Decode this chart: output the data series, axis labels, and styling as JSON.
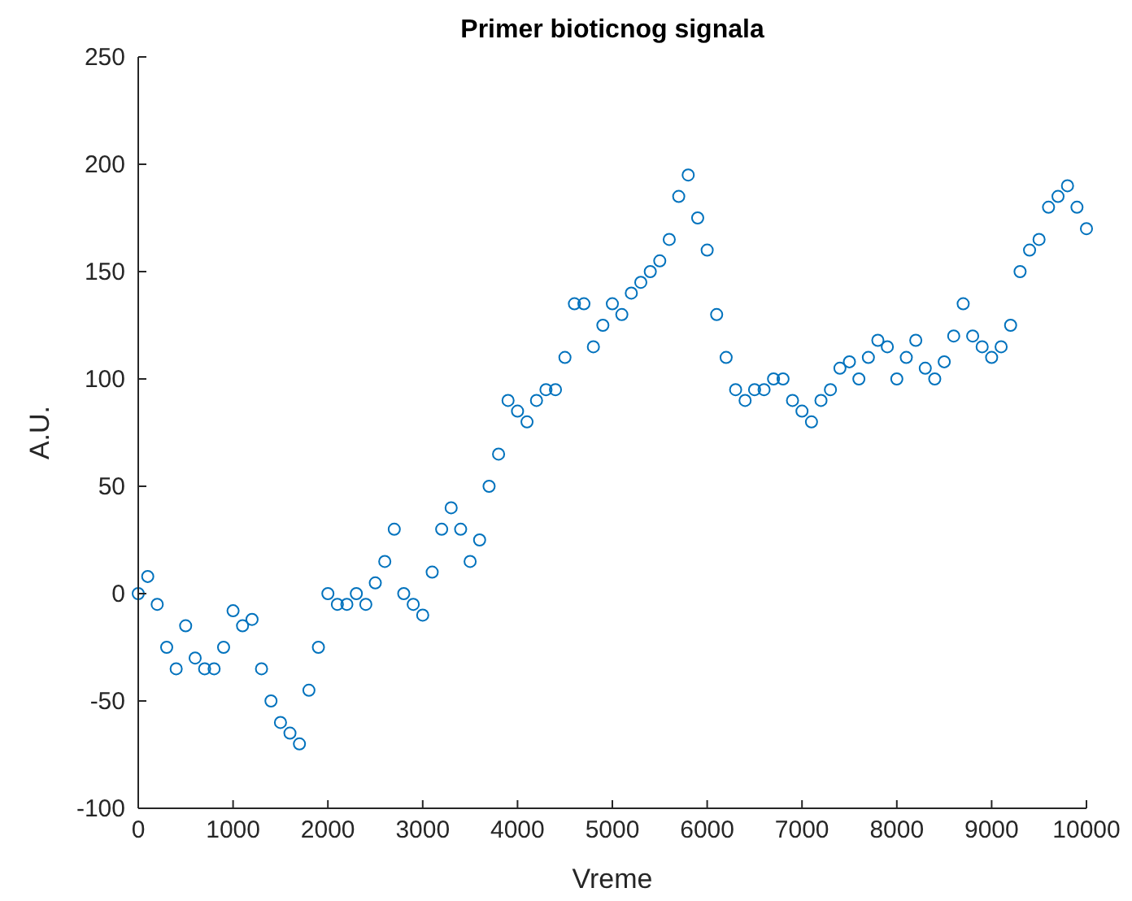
{
  "chart_data": {
    "type": "scatter",
    "title": "Primer bioticnog signala",
    "xlabel": "Vreme",
    "ylabel": "A.U.",
    "marker": "circle",
    "grid": false,
    "xlim": [
      0,
      10000
    ],
    "xticks": [
      0,
      1000,
      2000,
      3000,
      4000,
      5000,
      6000,
      7000,
      8000,
      9000,
      10000
    ],
    "ylim": [
      -100,
      250
    ],
    "yticks": [
      -100,
      -50,
      0,
      50,
      100,
      150,
      200,
      250
    ],
    "series": [
      {
        "color": "#0072bd",
        "x": [
          0,
          100,
          200,
          300,
          400,
          500,
          600,
          700,
          800,
          900,
          1000,
          1100,
          1200,
          1300,
          1400,
          1500,
          1600,
          1700,
          1800,
          1900,
          2000,
          2100,
          2200,
          2300,
          2400,
          2500,
          2600,
          2700,
          2800,
          2900,
          3000,
          3100,
          3200,
          3300,
          3400,
          3500,
          3600,
          3700,
          3800,
          3900,
          4000,
          4100,
          4200,
          4300,
          4400,
          4500,
          4600,
          4700,
          4800,
          4900,
          5000,
          5100,
          5200,
          5300,
          5400,
          5500,
          5600,
          5700,
          5800,
          5900,
          6000,
          6100,
          6200,
          6300,
          6400,
          6500,
          6600,
          6700,
          6800,
          6900,
          7000,
          7100,
          7200,
          7300,
          7400,
          7500,
          7600,
          7700,
          7800,
          7900,
          8000,
          8100,
          8200,
          8300,
          8400,
          8500,
          8600,
          8700,
          8800,
          8900,
          9000,
          9100,
          9200,
          9300,
          9400,
          9500,
          9600,
          9700,
          9800,
          9900,
          10000
        ],
        "values": [
          0,
          8,
          -5,
          -25,
          -35,
          -15,
          -30,
          -35,
          -35,
          -25,
          -8,
          -15,
          -12,
          -35,
          -50,
          -60,
          -65,
          -70,
          -45,
          -25,
          0,
          -5,
          -5,
          0,
          -5,
          5,
          15,
          30,
          0,
          -5,
          -10,
          10,
          30,
          40,
          30,
          15,
          25,
          50,
          65,
          90,
          85,
          80,
          90,
          95,
          95,
          110,
          135,
          135,
          115,
          125,
          135,
          130,
          140,
          145,
          150,
          155,
          165,
          185,
          195,
          175,
          160,
          130,
          110,
          95,
          90,
          95,
          95,
          100,
          100,
          90,
          85,
          80,
          90,
          95,
          105,
          108,
          100,
          110,
          118,
          115,
          100,
          110,
          118,
          105,
          100,
          108,
          120,
          135,
          120,
          115,
          110,
          115,
          125,
          150,
          160,
          165,
          180,
          185,
          190,
          180,
          170
        ]
      }
    ]
  }
}
